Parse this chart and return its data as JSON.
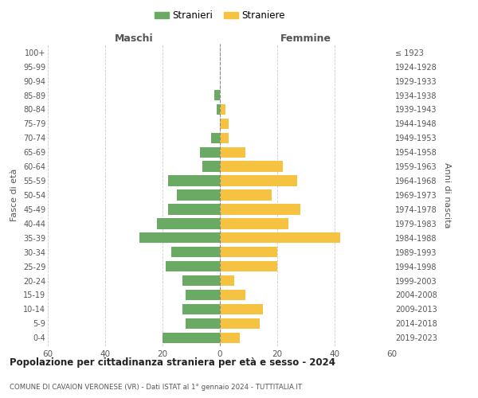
{
  "age_groups": [
    "0-4",
    "5-9",
    "10-14",
    "15-19",
    "20-24",
    "25-29",
    "30-34",
    "35-39",
    "40-44",
    "45-49",
    "50-54",
    "55-59",
    "60-64",
    "65-69",
    "70-74",
    "75-79",
    "80-84",
    "85-89",
    "90-94",
    "95-99",
    "100+"
  ],
  "birth_years": [
    "2019-2023",
    "2014-2018",
    "2009-2013",
    "2004-2008",
    "1999-2003",
    "1994-1998",
    "1989-1993",
    "1984-1988",
    "1979-1983",
    "1974-1978",
    "1969-1973",
    "1964-1968",
    "1959-1963",
    "1954-1958",
    "1949-1953",
    "1944-1948",
    "1939-1943",
    "1934-1938",
    "1929-1933",
    "1924-1928",
    "≤ 1923"
  ],
  "maschi": [
    20,
    12,
    13,
    12,
    13,
    19,
    17,
    28,
    22,
    18,
    15,
    18,
    6,
    7,
    3,
    0,
    1,
    2,
    0,
    0,
    0
  ],
  "femmine": [
    7,
    14,
    15,
    9,
    5,
    20,
    20,
    42,
    24,
    28,
    18,
    27,
    22,
    9,
    3,
    3,
    2,
    0,
    0,
    0,
    0
  ],
  "color_maschi": "#6aaa64",
  "color_femmine": "#f5c242",
  "title": "Popolazione per cittadinanza straniera per età e sesso - 2024",
  "subtitle": "COMUNE DI CAVAION VERONESE (VR) - Dati ISTAT al 1° gennaio 2024 - TUTTITALIA.IT",
  "xlabel_left": "Maschi",
  "xlabel_right": "Femmine",
  "ylabel_left": "Fasce di età",
  "ylabel_right": "Anni di nascita",
  "legend_maschi": "Stranieri",
  "legend_femmine": "Straniere",
  "xlim": 60,
  "background_color": "#ffffff",
  "grid_color": "#cccccc"
}
